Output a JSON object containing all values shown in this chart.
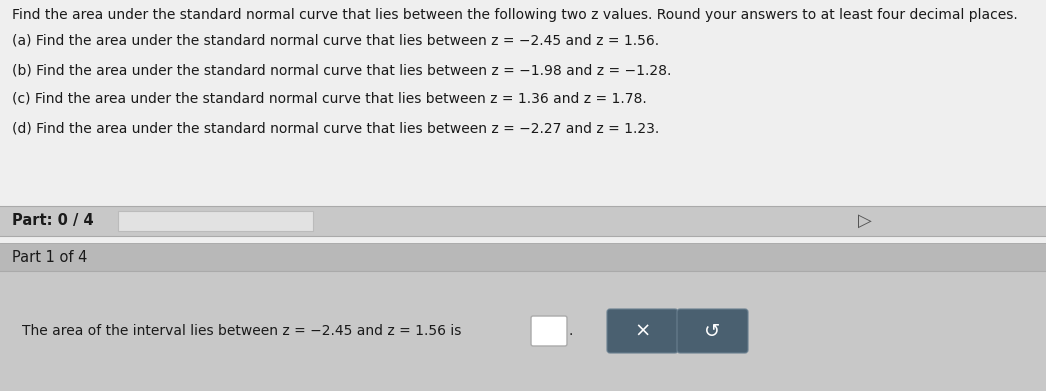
{
  "title_text": "Find the area under the standard normal curve that lies between the following two z values. Round your answers to at least four decimal places.",
  "part_a": "(a) Find the area under the standard normal curve that lies between z = −2.45 and z = 1.56.",
  "part_b": "(b) Find the area under the standard normal curve that lies between z = −1.98 and z = −1.28.",
  "part_c": "(c) Find the area under the standard normal curve that lies between z = 1.36 and z = 1.78.",
  "part_d": "(d) Find the area under the standard normal curve that lies between z = −2.27 and z = 1.23.",
  "progress_label": "Part: 0 / 4",
  "part_label": "Part 1 of 4",
  "answer_text": "The area of the interval lies between z = −2.45 and z = 1.56 is",
  "bg_color_top": "#efefef",
  "bg_color_part_header": "#c8c8c8",
  "bg_color_part1_header": "#b8b8b8",
  "bg_color_bottom": "#c8c8c8",
  "progress_bar_color": "#e0e0e0",
  "btn_color": "#4a6070",
  "text_color": "#1a1a1a",
  "font_size_title": 10.0,
  "font_size_body": 10.0,
  "font_size_part": 10.5
}
